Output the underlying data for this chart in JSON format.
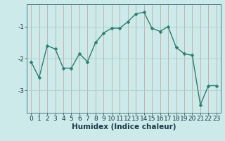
{
  "x": [
    0,
    1,
    2,
    3,
    4,
    5,
    6,
    7,
    8,
    9,
    10,
    11,
    12,
    13,
    14,
    15,
    16,
    17,
    18,
    19,
    20,
    21,
    22,
    23
  ],
  "y": [
    -2.1,
    -2.6,
    -1.6,
    -1.7,
    -2.3,
    -2.3,
    -1.85,
    -2.1,
    -1.5,
    -1.2,
    -1.05,
    -1.05,
    -0.85,
    -0.6,
    -0.55,
    -1.05,
    -1.15,
    -1.0,
    -1.65,
    -1.85,
    -1.9,
    -3.45,
    -2.85,
    -2.85
  ],
  "line_color": "#2e7d6e",
  "marker": "D",
  "markersize": 2.5,
  "linewidth": 1.0,
  "bg_color": "#cceaea",
  "grid_color_vert": "#c8a8a8",
  "grid_color_horiz": "#aacfcf",
  "xlabel": "Humidex (Indice chaleur)",
  "xlabel_fontsize": 7.5,
  "yticks": [
    -3,
    -2,
    -1
  ],
  "ylim": [
    -3.7,
    -0.3
  ],
  "xlim": [
    -0.5,
    23.5
  ],
  "tick_fontsize": 6.5
}
